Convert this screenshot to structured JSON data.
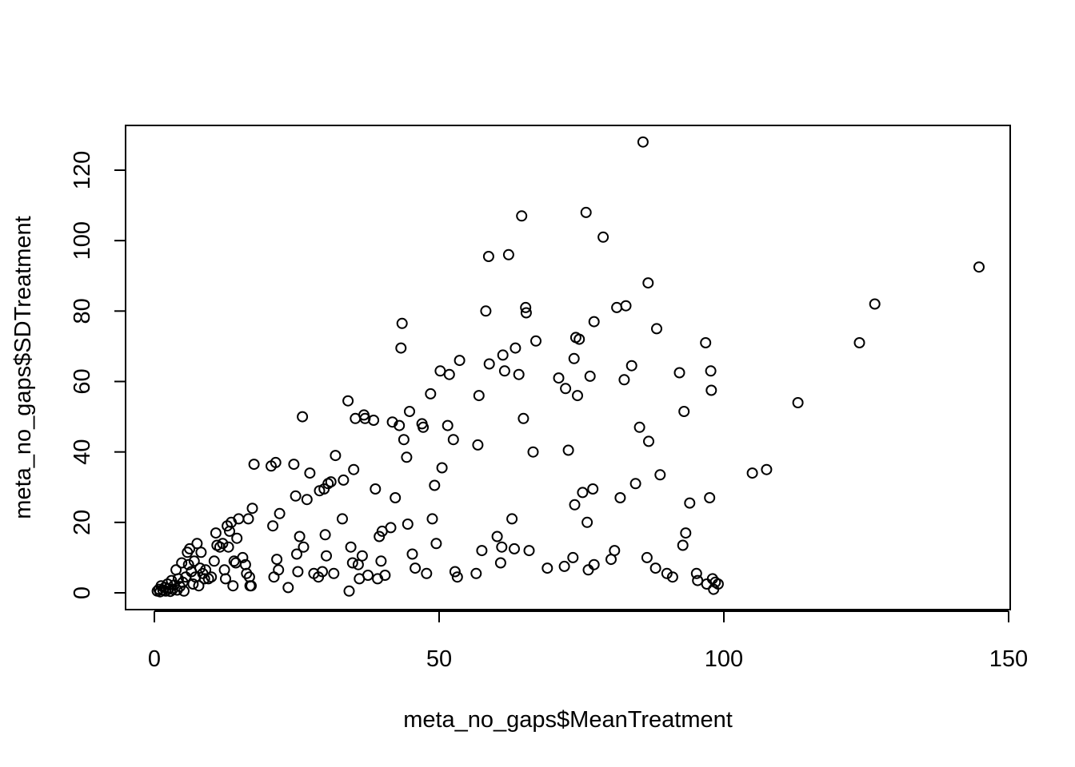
{
  "chart_data": {
    "type": "scatter",
    "xlabel": "meta_no_gaps$MeanTreatment",
    "ylabel": "meta_no_gaps$SDTreatment",
    "xlim": [
      -10,
      150
    ],
    "ylim": [
      -5,
      130
    ],
    "x_ticks": [
      0,
      50,
      100,
      150
    ],
    "y_ticks": [
      0,
      20,
      40,
      60,
      80,
      100,
      120
    ],
    "grid": false,
    "marker": "open-circle",
    "points": [
      [
        0.5,
        0.5
      ],
      [
        0.8,
        1.0
      ],
      [
        1.0,
        0.3
      ],
      [
        1.2,
        2.0
      ],
      [
        1.5,
        0.8
      ],
      [
        1.8,
        1.5
      ],
      [
        2.0,
        0.5
      ],
      [
        2.3,
        2.5
      ],
      [
        2.5,
        1.2
      ],
      [
        2.8,
        0.4
      ],
      [
        3.0,
        3.5
      ],
      [
        3.2,
        1.0
      ],
      [
        3.5,
        2.2
      ],
      [
        3.8,
        6.5
      ],
      [
        4.0,
        0.8
      ],
      [
        4.2,
        4.0
      ],
      [
        4.5,
        1.8
      ],
      [
        4.8,
        8.5
      ],
      [
        5.0,
        3.0
      ],
      [
        5.2,
        0.5
      ],
      [
        5.5,
        4.5
      ],
      [
        5.8,
        11.5
      ],
      [
        6.0,
        8.0
      ],
      [
        6.2,
        12.5
      ],
      [
        6.5,
        6.0
      ],
      [
        6.8,
        2.5
      ],
      [
        7.0,
        9.0
      ],
      [
        7.2,
        4.5
      ],
      [
        7.5,
        14.0
      ],
      [
        7.8,
        2.0
      ],
      [
        8.0,
        7.0
      ],
      [
        8.2,
        11.5
      ],
      [
        8.5,
        5.5
      ],
      [
        8.8,
        4.0
      ],
      [
        9.0,
        6.5
      ],
      [
        9.5,
        4.0
      ],
      [
        10.0,
        4.5
      ],
      [
        10.5,
        9.0
      ],
      [
        10.8,
        17.0
      ],
      [
        11.0,
        13.5
      ],
      [
        11.5,
        13.0
      ],
      [
        12.0,
        14.0
      ],
      [
        12.3,
        6.5
      ],
      [
        12.5,
        4.0
      ],
      [
        12.8,
        19.0
      ],
      [
        13.0,
        13.0
      ],
      [
        13.2,
        17.5
      ],
      [
        13.5,
        20.0
      ],
      [
        13.8,
        2.0
      ],
      [
        14.0,
        9.0
      ],
      [
        14.3,
        8.5
      ],
      [
        14.5,
        15.5
      ],
      [
        14.8,
        21.0
      ],
      [
        15.5,
        10.0
      ],
      [
        16.0,
        8.0
      ],
      [
        16.2,
        5.5
      ],
      [
        16.5,
        21.0
      ],
      [
        16.7,
        4.5
      ],
      [
        16.8,
        2.0
      ],
      [
        17.0,
        2.0
      ],
      [
        17.2,
        24.0
      ],
      [
        17.5,
        36.5
      ],
      [
        20.5,
        36.0
      ],
      [
        20.8,
        19.0
      ],
      [
        21.0,
        4.5
      ],
      [
        21.3,
        37.0
      ],
      [
        21.5,
        9.5
      ],
      [
        21.8,
        6.5
      ],
      [
        22.0,
        22.5
      ],
      [
        23.5,
        1.5
      ],
      [
        24.5,
        36.5
      ],
      [
        24.8,
        27.5
      ],
      [
        25.0,
        11.0
      ],
      [
        25.2,
        6.0
      ],
      [
        25.5,
        16.0
      ],
      [
        26.0,
        50.0
      ],
      [
        26.2,
        13.0
      ],
      [
        26.8,
        26.5
      ],
      [
        27.3,
        34.0
      ],
      [
        28.0,
        5.5
      ],
      [
        28.8,
        4.5
      ],
      [
        29.0,
        29.0
      ],
      [
        29.5,
        6.0
      ],
      [
        29.8,
        29.5
      ],
      [
        30.0,
        16.5
      ],
      [
        30.2,
        10.5
      ],
      [
        30.5,
        31.0
      ],
      [
        31.0,
        31.5
      ],
      [
        31.5,
        5.5
      ],
      [
        31.8,
        39.0
      ],
      [
        33.0,
        21.0
      ],
      [
        33.2,
        32.0
      ],
      [
        34.0,
        54.5
      ],
      [
        34.2,
        0.5
      ],
      [
        34.5,
        13.0
      ],
      [
        34.8,
        8.5
      ],
      [
        35.0,
        35.0
      ],
      [
        35.3,
        49.5
      ],
      [
        35.8,
        8.0
      ],
      [
        36.0,
        4.0
      ],
      [
        36.5,
        10.5
      ],
      [
        36.8,
        50.5
      ],
      [
        37.0,
        49.5
      ],
      [
        37.5,
        5.0
      ],
      [
        38.5,
        49.0
      ],
      [
        38.8,
        29.5
      ],
      [
        39.2,
        4.0
      ],
      [
        39.5,
        16.0
      ],
      [
        39.8,
        9.0
      ],
      [
        40.0,
        17.5
      ],
      [
        40.5,
        5.0
      ],
      [
        41.5,
        18.5
      ],
      [
        41.8,
        48.5
      ],
      [
        42.3,
        27.0
      ],
      [
        43.0,
        47.5
      ],
      [
        43.3,
        69.5
      ],
      [
        43.5,
        76.5
      ],
      [
        43.8,
        43.5
      ],
      [
        44.3,
        38.5
      ],
      [
        44.5,
        19.5
      ],
      [
        44.8,
        51.5
      ],
      [
        45.3,
        11.0
      ],
      [
        45.8,
        7.0
      ],
      [
        47.0,
        48.0
      ],
      [
        47.2,
        47.0
      ],
      [
        47.8,
        5.5
      ],
      [
        48.5,
        56.5
      ],
      [
        48.8,
        21.0
      ],
      [
        49.2,
        30.5
      ],
      [
        49.5,
        14.0
      ],
      [
        50.2,
        63.0
      ],
      [
        50.5,
        35.5
      ],
      [
        51.5,
        47.5
      ],
      [
        51.8,
        62.0
      ],
      [
        52.5,
        43.5
      ],
      [
        52.8,
        6.0
      ],
      [
        53.2,
        4.5
      ],
      [
        53.6,
        66.0
      ],
      [
        56.5,
        5.5
      ],
      [
        56.8,
        42.0
      ],
      [
        57.0,
        56.0
      ],
      [
        57.5,
        12.0
      ],
      [
        58.2,
        80.0
      ],
      [
        58.7,
        95.5
      ],
      [
        58.8,
        65.0
      ],
      [
        60.2,
        16.0
      ],
      [
        60.8,
        8.5
      ],
      [
        61.0,
        13.0
      ],
      [
        61.2,
        67.5
      ],
      [
        61.5,
        63.0
      ],
      [
        62.2,
        96.0
      ],
      [
        62.8,
        21.0
      ],
      [
        63.2,
        12.5
      ],
      [
        63.4,
        69.5
      ],
      [
        64.0,
        62.0
      ],
      [
        64.5,
        107.0
      ],
      [
        64.8,
        49.5
      ],
      [
        65.2,
        81.0
      ],
      [
        65.3,
        79.5
      ],
      [
        65.8,
        12.0
      ],
      [
        66.5,
        40.0
      ],
      [
        67.0,
        71.5
      ],
      [
        69.0,
        7.0
      ],
      [
        71.0,
        61.0
      ],
      [
        72.0,
        7.5
      ],
      [
        72.2,
        58.0
      ],
      [
        72.7,
        40.5
      ],
      [
        73.5,
        10.0
      ],
      [
        73.7,
        66.5
      ],
      [
        73.8,
        25.0
      ],
      [
        74.0,
        72.5
      ],
      [
        74.3,
        56.0
      ],
      [
        74.6,
        72.0
      ],
      [
        75.2,
        28.5
      ],
      [
        75.8,
        108.0
      ],
      [
        76.0,
        20.0
      ],
      [
        76.2,
        6.5
      ],
      [
        76.5,
        61.5
      ],
      [
        77.0,
        29.5
      ],
      [
        77.2,
        77.0
      ],
      [
        77.2,
        8.0
      ],
      [
        78.8,
        101.0
      ],
      [
        80.2,
        9.5
      ],
      [
        80.8,
        12.0
      ],
      [
        81.2,
        81.0
      ],
      [
        81.8,
        27.0
      ],
      [
        82.5,
        60.5
      ],
      [
        82.8,
        81.5
      ],
      [
        83.8,
        64.5
      ],
      [
        84.5,
        31.0
      ],
      [
        85.2,
        47.0
      ],
      [
        85.8,
        128.0
      ],
      [
        86.5,
        10.0
      ],
      [
        86.7,
        88.0
      ],
      [
        86.8,
        43.0
      ],
      [
        88.0,
        7.0
      ],
      [
        88.2,
        75.0
      ],
      [
        88.8,
        33.5
      ],
      [
        90.0,
        5.5
      ],
      [
        91.0,
        4.5
      ],
      [
        92.2,
        62.5
      ],
      [
        92.8,
        13.5
      ],
      [
        93.0,
        51.5
      ],
      [
        93.3,
        17.0
      ],
      [
        94.0,
        25.5
      ],
      [
        95.2,
        5.5
      ],
      [
        95.4,
        3.5
      ],
      [
        96.8,
        71.0
      ],
      [
        97.0,
        2.5
      ],
      [
        97.5,
        27.0
      ],
      [
        97.7,
        63.0
      ],
      [
        97.8,
        57.5
      ],
      [
        98.0,
        4.0
      ],
      [
        98.2,
        1.0
      ],
      [
        98.5,
        3.0
      ],
      [
        99.0,
        2.5
      ],
      [
        105.0,
        34.0
      ],
      [
        107.5,
        35.0
      ],
      [
        113.0,
        54.0
      ],
      [
        123.8,
        71.0
      ],
      [
        126.5,
        82.0
      ],
      [
        144.8,
        92.5
      ]
    ]
  }
}
